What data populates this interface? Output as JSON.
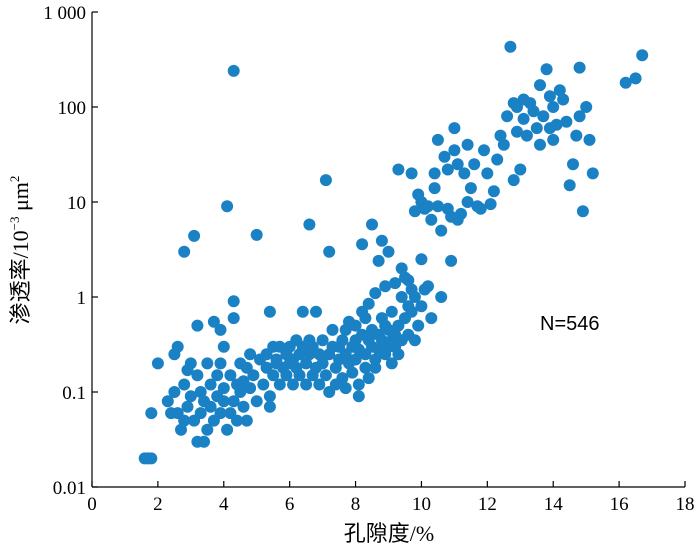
{
  "chart_data": {
    "type": "scatter",
    "xlabel": "孔隙度/%",
    "ylabel_main": "渗透率/10",
    "ylabel_exp": "−3",
    "ylabel_unit": " μm",
    "ylabel_unit_exp": "2",
    "annotation": "N=546",
    "xlim": [
      0,
      18
    ],
    "ylim": [
      0.01,
      1000
    ],
    "yscale": "log",
    "grid": false,
    "marker_color": "#1a82c4",
    "x_ticks": [
      0,
      2,
      4,
      6,
      8,
      10,
      12,
      14,
      16,
      18
    ],
    "x_tick_labels": [
      "0",
      "2",
      "4",
      "6",
      "8",
      "10",
      "12",
      "14",
      "16",
      "18"
    ],
    "y_ticks": [
      0.01,
      0.1,
      1,
      10,
      100,
      1000
    ],
    "y_tick_labels": [
      "0.01",
      "0.1",
      "1",
      "10",
      "100",
      "1 000"
    ],
    "points": [
      [
        1.6,
        0.02
      ],
      [
        1.7,
        0.02
      ],
      [
        1.8,
        0.02
      ],
      [
        1.8,
        0.06
      ],
      [
        2.0,
        0.2
      ],
      [
        2.3,
        0.08
      ],
      [
        2.4,
        0.06
      ],
      [
        2.5,
        0.1
      ],
      [
        2.6,
        0.06
      ],
      [
        2.5,
        0.25
      ],
      [
        2.6,
        0.3
      ],
      [
        2.7,
        0.04
      ],
      [
        2.8,
        0.05
      ],
      [
        2.8,
        0.12
      ],
      [
        2.8,
        3.0
      ],
      [
        2.9,
        0.17
      ],
      [
        2.9,
        0.07
      ],
      [
        3.0,
        0.2
      ],
      [
        3.0,
        0.09
      ],
      [
        3.1,
        0.05
      ],
      [
        3.1,
        4.4
      ],
      [
        3.2,
        0.03
      ],
      [
        3.2,
        0.15
      ],
      [
        3.2,
        0.5
      ],
      [
        3.3,
        0.06
      ],
      [
        3.3,
        0.1
      ],
      [
        3.4,
        0.03
      ],
      [
        3.4,
        0.08
      ],
      [
        3.5,
        0.2
      ],
      [
        3.5,
        0.04
      ],
      [
        3.6,
        0.12
      ],
      [
        3.6,
        0.07
      ],
      [
        3.7,
        0.55
      ],
      [
        3.7,
        0.05
      ],
      [
        3.8,
        0.09
      ],
      [
        3.8,
        0.15
      ],
      [
        3.9,
        0.2
      ],
      [
        3.9,
        0.06
      ],
      [
        3.9,
        0.45
      ],
      [
        4.0,
        0.3
      ],
      [
        4.0,
        0.08
      ],
      [
        4.0,
        0.11
      ],
      [
        4.1,
        0.04
      ],
      [
        4.1,
        9.0
      ],
      [
        4.2,
        0.06
      ],
      [
        4.2,
        0.15
      ],
      [
        4.3,
        0.08
      ],
      [
        4.3,
        0.6
      ],
      [
        4.3,
        240.0
      ],
      [
        4.3,
        0.9
      ],
      [
        4.4,
        0.12
      ],
      [
        4.4,
        0.05
      ],
      [
        4.5,
        0.1
      ],
      [
        4.5,
        0.2
      ],
      [
        4.6,
        0.07
      ],
      [
        4.6,
        0.13
      ],
      [
        4.7,
        0.18
      ],
      [
        4.7,
        0.05
      ],
      [
        4.8,
        0.25
      ],
      [
        4.8,
        0.11
      ],
      [
        4.9,
        0.15
      ],
      [
        5.0,
        0.08
      ],
      [
        5.0,
        4.5
      ],
      [
        5.1,
        0.22
      ],
      [
        5.2,
        0.12
      ],
      [
        5.3,
        0.18
      ],
      [
        5.3,
        0.25
      ],
      [
        5.4,
        0.07
      ],
      [
        5.4,
        0.09
      ],
      [
        5.4,
        0.7
      ],
      [
        5.5,
        0.15
      ],
      [
        5.5,
        0.3
      ],
      [
        5.6,
        0.2
      ],
      [
        5.6,
        0.22
      ],
      [
        5.7,
        0.12
      ],
      [
        5.7,
        0.3
      ],
      [
        5.8,
        0.18
      ],
      [
        5.9,
        0.25
      ],
      [
        5.9,
        0.15
      ],
      [
        6.0,
        0.2
      ],
      [
        6.0,
        0.3
      ],
      [
        6.1,
        0.22
      ],
      [
        6.1,
        0.12
      ],
      [
        6.2,
        0.35
      ],
      [
        6.2,
        0.18
      ],
      [
        6.3,
        0.25
      ],
      [
        6.3,
        0.15
      ],
      [
        6.4,
        0.7
      ],
      [
        6.4,
        0.3
      ],
      [
        6.5,
        0.2
      ],
      [
        6.5,
        0.12
      ],
      [
        6.6,
        0.25
      ],
      [
        6.6,
        0.35
      ],
      [
        6.6,
        5.8
      ],
      [
        6.7,
        0.15
      ],
      [
        6.7,
        0.3
      ],
      [
        6.8,
        0.18
      ],
      [
        6.8,
        0.7
      ],
      [
        6.9,
        0.12
      ],
      [
        6.9,
        0.25
      ],
      [
        7.0,
        0.35
      ],
      [
        7.0,
        0.2
      ],
      [
        7.1,
        0.15
      ],
      [
        7.1,
        17.0
      ],
      [
        7.2,
        0.25
      ],
      [
        7.2,
        3.0
      ],
      [
        7.2,
        0.1
      ],
      [
        7.3,
        0.3
      ],
      [
        7.3,
        0.45
      ],
      [
        7.4,
        0.18
      ],
      [
        7.4,
        0.12
      ],
      [
        7.5,
        0.3
      ],
      [
        7.5,
        0.22
      ],
      [
        7.6,
        0.35
      ],
      [
        7.6,
        0.14
      ],
      [
        7.7,
        0.25
      ],
      [
        7.7,
        0.45
      ],
      [
        7.7,
        0.11
      ],
      [
        7.8,
        0.2
      ],
      [
        7.8,
        0.55
      ],
      [
        7.9,
        0.3
      ],
      [
        7.9,
        0.16
      ],
      [
        8.0,
        0.35
      ],
      [
        8.0,
        0.5
      ],
      [
        8.0,
        0.22
      ],
      [
        8.1,
        0.12
      ],
      [
        8.1,
        0.28
      ],
      [
        8.1,
        0.09
      ],
      [
        8.2,
        0.4
      ],
      [
        8.2,
        0.7
      ],
      [
        8.2,
        3.6
      ],
      [
        8.3,
        0.25
      ],
      [
        8.3,
        0.18
      ],
      [
        8.3,
        0.6
      ],
      [
        8.4,
        0.35
      ],
      [
        8.4,
        0.14
      ],
      [
        8.4,
        0.85
      ],
      [
        8.5,
        0.3
      ],
      [
        8.5,
        0.45
      ],
      [
        8.5,
        5.8
      ],
      [
        8.6,
        0.22
      ],
      [
        8.6,
        1.1
      ],
      [
        8.6,
        0.18
      ],
      [
        8.7,
        0.4
      ],
      [
        8.7,
        0.28
      ],
      [
        8.7,
        2.4
      ],
      [
        8.8,
        0.35
      ],
      [
        8.8,
        0.6
      ],
      [
        8.8,
        3.9
      ],
      [
        8.9,
        0.25
      ],
      [
        8.9,
        0.5
      ],
      [
        8.9,
        1.3
      ],
      [
        9.0,
        0.3
      ],
      [
        9.0,
        0.45
      ],
      [
        9.0,
        3.0
      ],
      [
        9.1,
        0.35
      ],
      [
        9.1,
        0.7
      ],
      [
        9.1,
        0.2
      ],
      [
        9.2,
        0.4
      ],
      [
        9.2,
        0.3
      ],
      [
        9.2,
        1.4
      ],
      [
        9.3,
        0.5
      ],
      [
        9.3,
        22.0
      ],
      [
        9.3,
        0.25
      ],
      [
        9.4,
        0.35
      ],
      [
        9.4,
        2.0
      ],
      [
        9.4,
        1.0
      ],
      [
        9.5,
        0.6
      ],
      [
        9.5,
        1.6
      ],
      [
        9.6,
        0.4
      ],
      [
        9.6,
        0.8
      ],
      [
        9.6,
        1.5
      ],
      [
        9.7,
        0.7
      ],
      [
        9.7,
        1.2
      ],
      [
        9.7,
        20.0
      ],
      [
        9.8,
        0.35
      ],
      [
        9.8,
        1.0
      ],
      [
        9.8,
        8.0
      ],
      [
        9.9,
        0.5
      ],
      [
        9.9,
        12.0
      ],
      [
        10.0,
        2.5
      ],
      [
        10.0,
        0.8
      ],
      [
        10.0,
        10.0
      ],
      [
        10.1,
        1.2
      ],
      [
        10.1,
        8.5
      ],
      [
        10.2,
        9.0
      ],
      [
        10.2,
        1.3
      ],
      [
        10.3,
        6.5
      ],
      [
        10.3,
        0.6
      ],
      [
        10.4,
        20.0
      ],
      [
        10.4,
        14.0
      ],
      [
        10.5,
        45.0
      ],
      [
        10.5,
        9.0
      ],
      [
        10.6,
        5.0
      ],
      [
        10.6,
        1.0
      ],
      [
        10.7,
        30.0
      ],
      [
        10.8,
        8.5
      ],
      [
        10.8,
        22.0
      ],
      [
        10.9,
        2.4
      ],
      [
        10.9,
        7.0
      ],
      [
        11.0,
        60.0
      ],
      [
        11.0,
        35.0
      ],
      [
        11.1,
        6.5
      ],
      [
        11.1,
        25.0
      ],
      [
        11.2,
        7.5
      ],
      [
        11.3,
        20.0
      ],
      [
        11.4,
        10.0
      ],
      [
        11.4,
        40.0
      ],
      [
        11.5,
        14.0
      ],
      [
        11.6,
        25.0
      ],
      [
        11.7,
        9.0
      ],
      [
        11.8,
        8.5
      ],
      [
        11.9,
        35.0
      ],
      [
        12.0,
        20.0
      ],
      [
        12.1,
        9.5
      ],
      [
        12.2,
        13.0
      ],
      [
        12.3,
        28.0
      ],
      [
        12.4,
        50.0
      ],
      [
        12.5,
        40.0
      ],
      [
        12.6,
        80.0
      ],
      [
        12.7,
        430.0
      ],
      [
        12.8,
        110.0
      ],
      [
        12.8,
        17.0
      ],
      [
        12.9,
        55.0
      ],
      [
        12.9,
        100.0
      ],
      [
        13.0,
        22.0
      ],
      [
        13.1,
        75.0
      ],
      [
        13.1,
        120.0
      ],
      [
        13.2,
        50.0
      ],
      [
        13.3,
        110.0
      ],
      [
        13.4,
        90.0
      ],
      [
        13.5,
        60.0
      ],
      [
        13.6,
        40.0
      ],
      [
        13.6,
        170.0
      ],
      [
        13.7,
        80.0
      ],
      [
        13.8,
        250.0
      ],
      [
        13.9,
        130.0
      ],
      [
        13.9,
        60.0
      ],
      [
        14.0,
        45.0
      ],
      [
        14.0,
        100.0
      ],
      [
        14.1,
        65.0
      ],
      [
        14.2,
        150.0
      ],
      [
        14.3,
        120.0
      ],
      [
        14.4,
        70.0
      ],
      [
        14.5,
        15.0
      ],
      [
        14.6,
        25.0
      ],
      [
        14.7,
        50.0
      ],
      [
        14.8,
        260.0
      ],
      [
        14.8,
        80.0
      ],
      [
        14.9,
        8.0
      ],
      [
        15.0,
        100.0
      ],
      [
        15.1,
        45.0
      ],
      [
        15.2,
        20.0
      ],
      [
        16.2,
        180.0
      ],
      [
        16.5,
        200.0
      ],
      [
        16.7,
        350.0
      ]
    ]
  }
}
